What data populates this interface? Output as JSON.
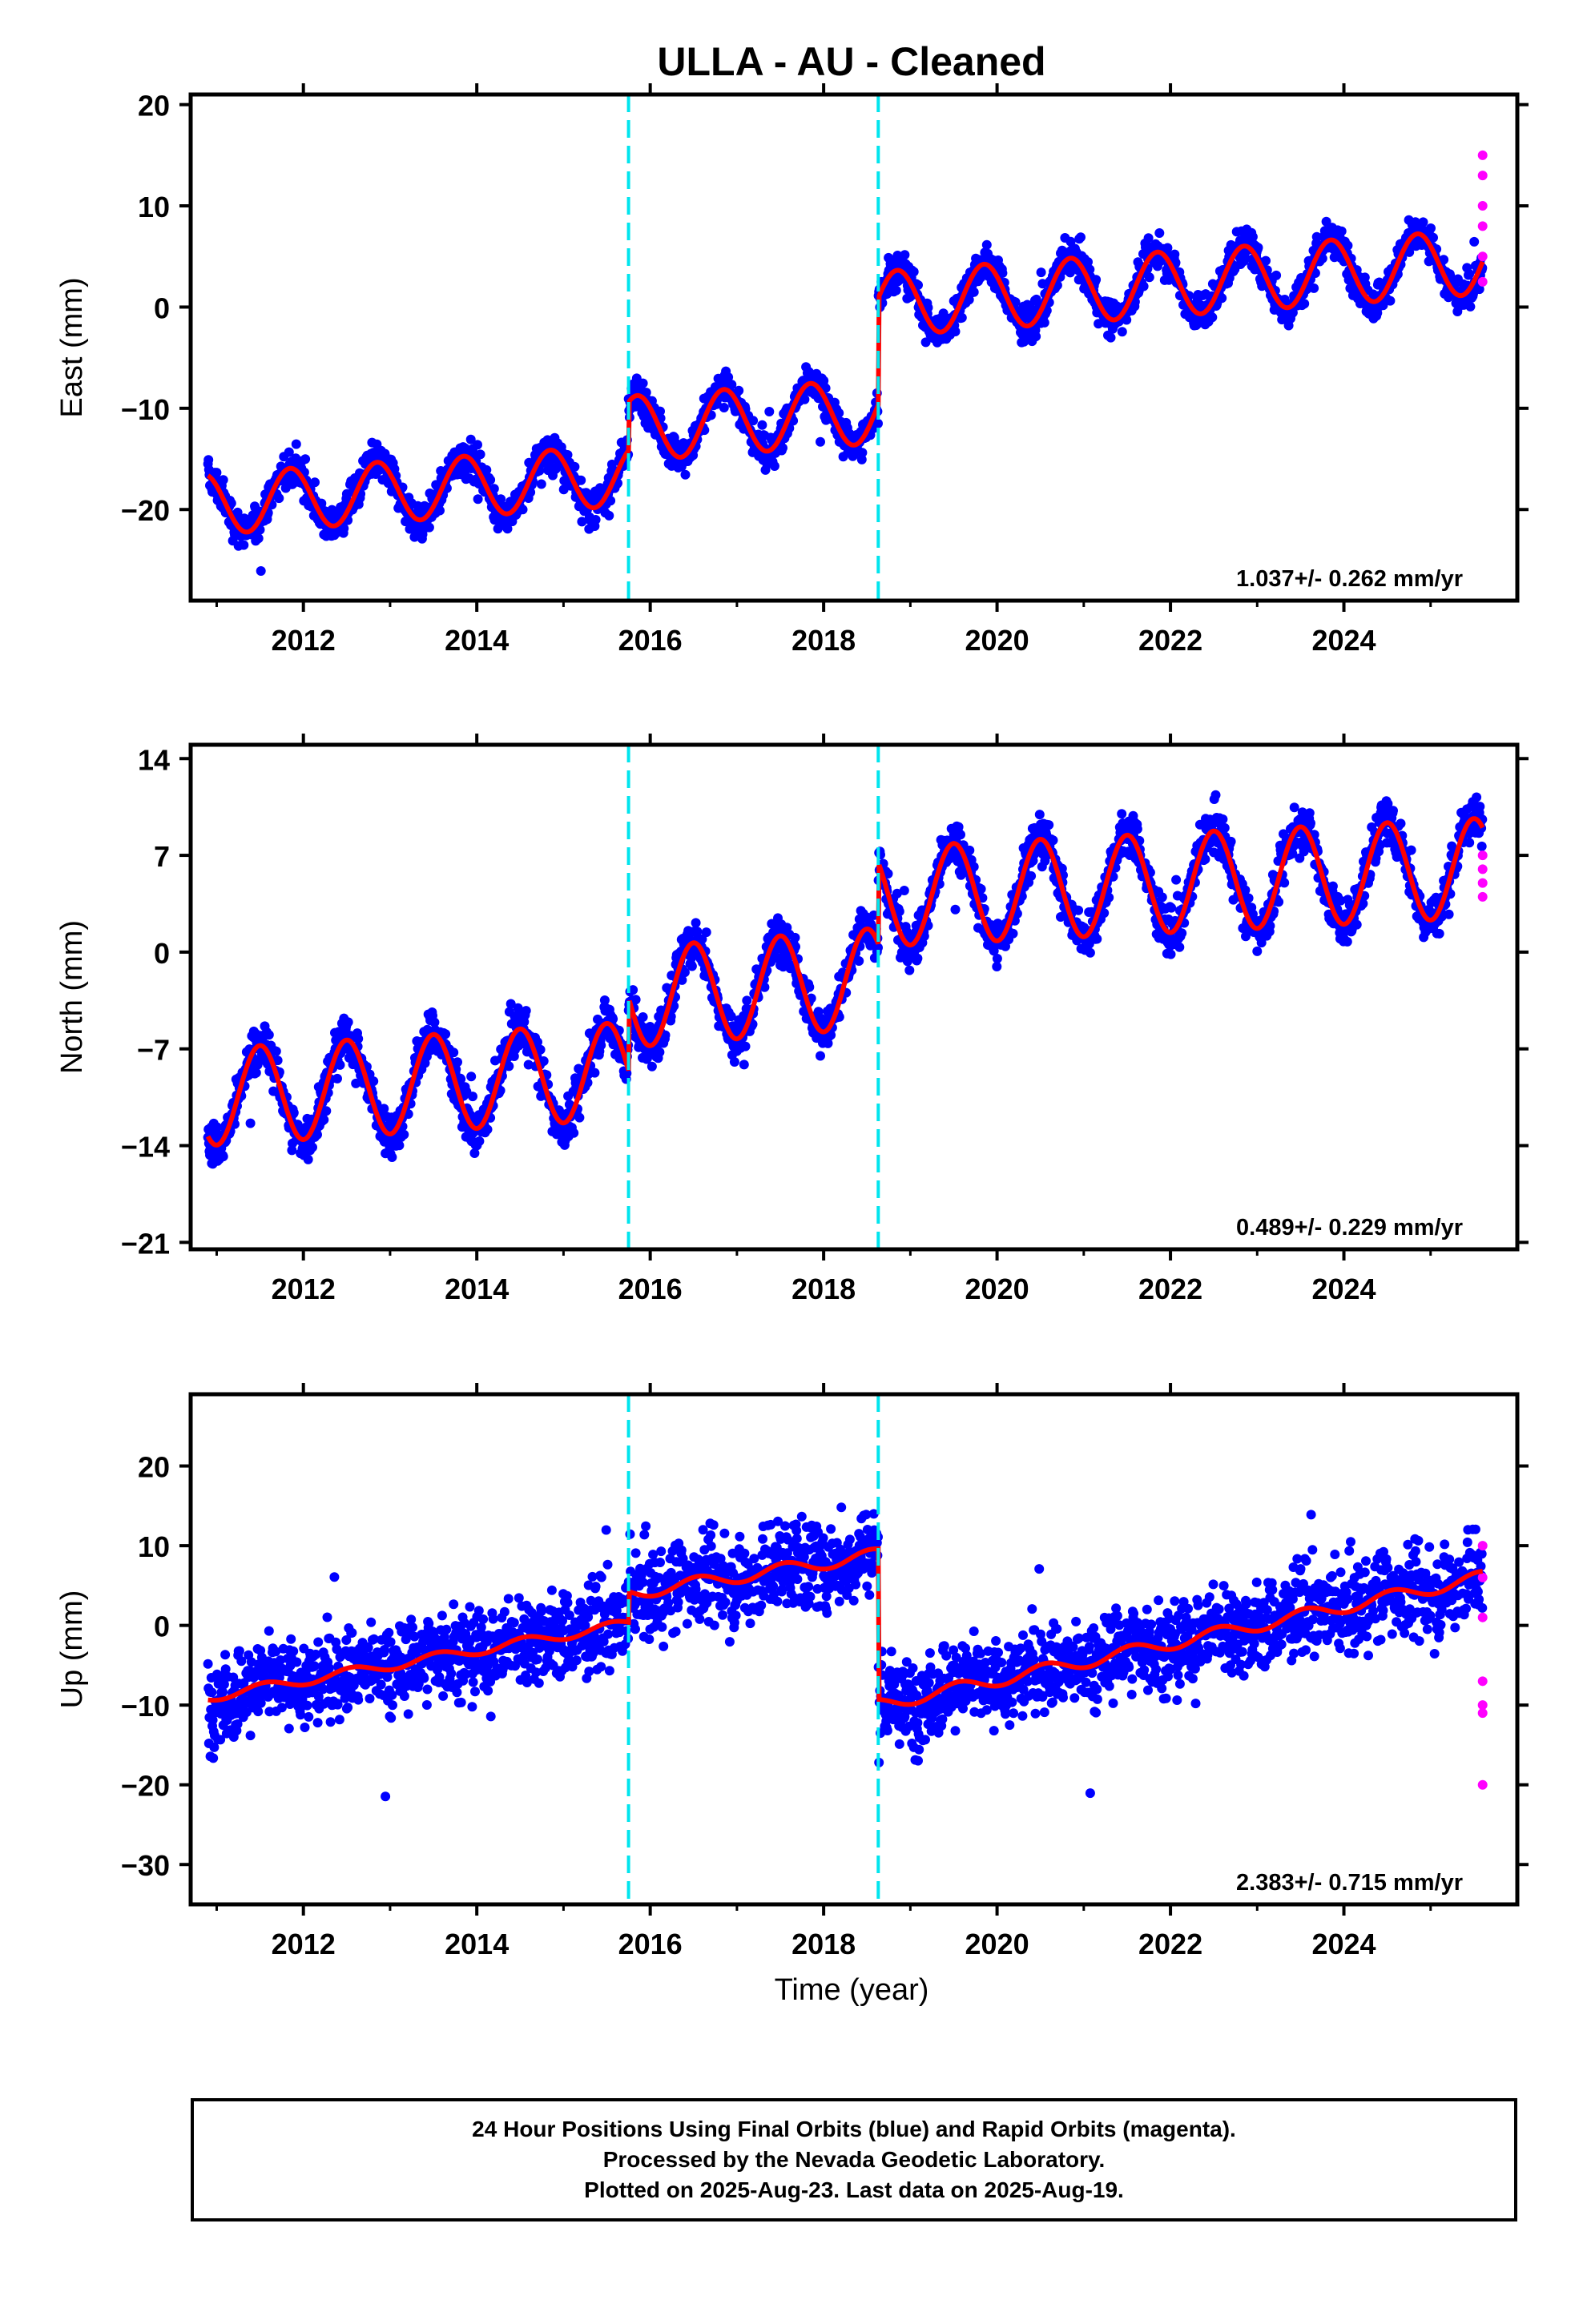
{
  "title": "ULLA  - AU - Cleaned",
  "xlabel": "Time (year)",
  "colors": {
    "final": "#0000ff",
    "rapid": "#ff00ff",
    "model": "#ff0000",
    "offset": "#00e5ee"
  },
  "x_ticks": [
    2012,
    2014,
    2016,
    2018,
    2020,
    2022,
    2024
  ],
  "xlim": [
    2010.7,
    2026.0
  ],
  "offsets": [
    2015.75,
    2018.63
  ],
  "footer": {
    "line1": "24 Hour Positions Using Final Orbits (blue) and Rapid Orbits (magenta).",
    "line2": "Processed by the Nevada Geodetic Laboratory.",
    "line3": "Plotted on 2025-Aug-23. Last data on 2025-Aug-19."
  },
  "chart_data": [
    {
      "type": "scatter",
      "component": "east",
      "ylabel": "East (mm)",
      "ylim": [
        -29,
        21
      ],
      "y_ticks": [
        -20,
        -10,
        0,
        10,
        20
      ],
      "rate_label": "1.037+/- 0.262 mm/yr",
      "model": {
        "start": 2010.9,
        "end": 2025.6,
        "segments": [
          [
            -19.5,
            0.6
          ],
          [
            -12.0,
            0.6
          ],
          [
            0.3,
            0.6
          ]
        ],
        "amp": 3.2,
        "amp_early": 3.0,
        "noise": 1.6
      },
      "rapid_points": [
        [
          2025.6,
          15
        ],
        [
          2025.6,
          13
        ],
        [
          2025.6,
          10
        ],
        [
          2025.6,
          8
        ],
        [
          2025.6,
          5
        ],
        [
          2025.6,
          2.5
        ]
      ]
    },
    {
      "type": "scatter",
      "component": "north",
      "ylabel": "North (mm)",
      "ylim": [
        -21.5,
        15
      ],
      "y_ticks": [
        -21,
        -14,
        -7,
        0,
        7,
        14
      ],
      "rate_label": "0.489+/- 0.229 mm/yr",
      "model": {
        "start": 2010.9,
        "end": 2025.6,
        "segments": [
          [
            -10.5,
            0.4
          ],
          [
            -3.3,
            0.5
          ],
          [
            4.0,
            0.3
          ]
        ],
        "amp": 3.6,
        "amp_early": 3.5,
        "noise": 1.5
      },
      "rapid_points": [
        [
          2025.6,
          7
        ],
        [
          2025.6,
          6
        ],
        [
          2025.6,
          5
        ],
        [
          2025.6,
          4
        ]
      ]
    },
    {
      "type": "scatter",
      "component": "up",
      "ylabel": "Up (mm)",
      "ylim": [
        -35,
        29
      ],
      "y_ticks": [
        -30,
        -20,
        -10,
        0,
        10,
        20
      ],
      "rate_label": "2.383+/- 0.715 mm/yr",
      "model": {
        "start": 2010.9,
        "end": 2025.6,
        "segments": [
          [
            -9.0,
            1.9
          ],
          [
            4.0,
            1.7
          ],
          [
            -10.0,
            2.3
          ]
        ],
        "amp": 0.8,
        "amp_early": 0.6,
        "noise": 5.0
      },
      "rapid_points": [
        [
          2025.6,
          10
        ],
        [
          2025.6,
          6
        ],
        [
          2025.6,
          1
        ],
        [
          2025.6,
          -7
        ],
        [
          2025.6,
          -10
        ],
        [
          2025.6,
          -11
        ],
        [
          2025.6,
          -20
        ]
      ]
    }
  ]
}
